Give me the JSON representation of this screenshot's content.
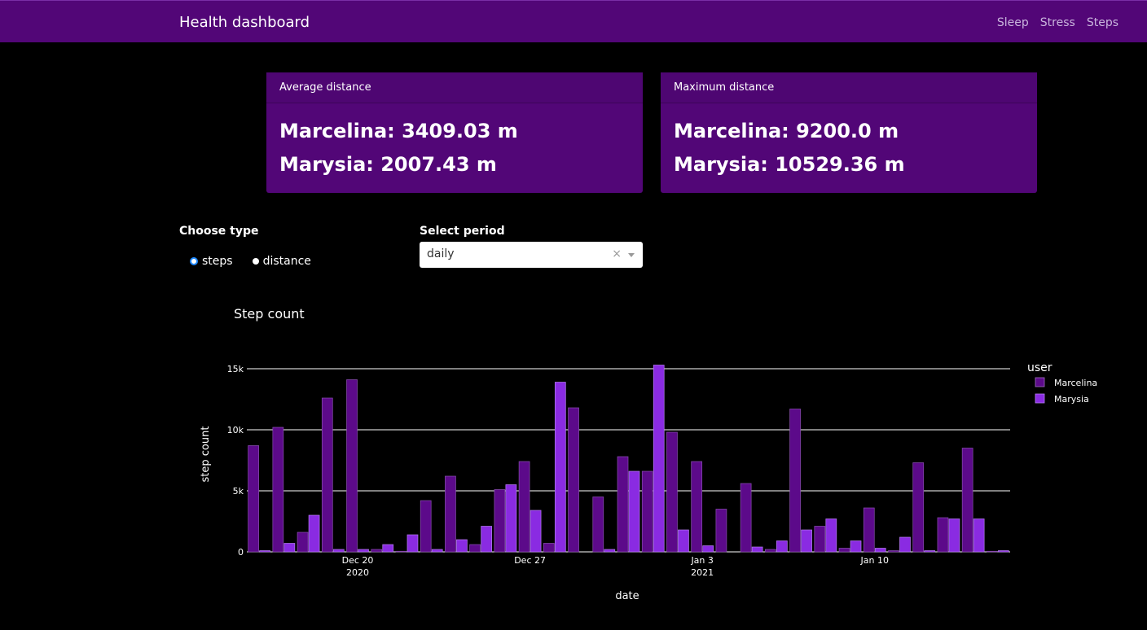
{
  "navbar": {
    "brand": "Health dashboard",
    "links": [
      "Sleep",
      "Stress",
      "Steps"
    ]
  },
  "cards": [
    {
      "header": "Average distance",
      "lines": [
        "Marcelina: 3409.03 m",
        "Marysia: 2007.43 m"
      ]
    },
    {
      "header": "Maximum distance",
      "lines": [
        "Marcelina: 9200.0 m",
        "Marysia: 10529.36 m"
      ]
    }
  ],
  "controls": {
    "type_label": "Choose type",
    "type_options": [
      "steps",
      "distance"
    ],
    "type_selected": "steps",
    "period_label": "Select period",
    "period_value": "daily",
    "clear_symbol": "×"
  },
  "colors": {
    "navbar": "#520677",
    "card": "#520677",
    "marcelina": "#5c0a8a",
    "marysia": "#8a2be2"
  },
  "chart_data": {
    "type": "bar",
    "title": "Step count",
    "xlabel": "date",
    "ylabel": "step count",
    "legend_title": "user",
    "legend_position": "top-right",
    "grid": true,
    "ylim": [
      0,
      15000
    ],
    "yticks": [
      "0",
      "5k",
      "10k",
      "15k"
    ],
    "xticks": [
      {
        "date": "2020-12-20",
        "label": "Dec 20",
        "sub": "2020"
      },
      {
        "date": "2020-12-27",
        "label": "Dec 27",
        "sub": ""
      },
      {
        "date": "2021-01-03",
        "label": "Jan 3",
        "sub": "2021"
      },
      {
        "date": "2021-01-10",
        "label": "Jan 10",
        "sub": ""
      }
    ],
    "x": [
      "2020-12-16",
      "2020-12-17",
      "2020-12-18",
      "2020-12-19",
      "2020-12-20",
      "2020-12-21",
      "2020-12-22",
      "2020-12-23",
      "2020-12-24",
      "2020-12-25",
      "2020-12-26",
      "2020-12-27",
      "2020-12-28",
      "2020-12-29",
      "2020-12-30",
      "2020-12-31",
      "2021-01-01",
      "2021-01-02",
      "2021-01-03",
      "2021-01-04",
      "2021-01-05",
      "2021-01-06",
      "2021-01-07",
      "2021-01-08",
      "2021-01-09",
      "2021-01-10",
      "2021-01-11",
      "2021-01-12",
      "2021-01-13",
      "2021-01-14",
      "2021-01-15"
    ],
    "series": [
      {
        "name": "Marcelina",
        "values": [
          8700,
          10200,
          1600,
          12600,
          14100,
          200,
          50,
          4200,
          6200,
          600,
          5100,
          7400,
          700,
          11800,
          4500,
          7800,
          6600,
          9800,
          7400,
          3500,
          5600,
          200,
          11700,
          2100,
          300,
          3600,
          100,
          7300,
          2800,
          8500,
          50
        ]
      },
      {
        "name": "Marysia",
        "values": [
          100,
          700,
          3000,
          200,
          200,
          600,
          1400,
          200,
          1000,
          2100,
          5500,
          3400,
          13900,
          0,
          200,
          6600,
          15300,
          1800,
          500,
          0,
          400,
          900,
          1800,
          2700,
          900,
          300,
          1200,
          100,
          2700,
          2700,
          100
        ]
      }
    ]
  }
}
